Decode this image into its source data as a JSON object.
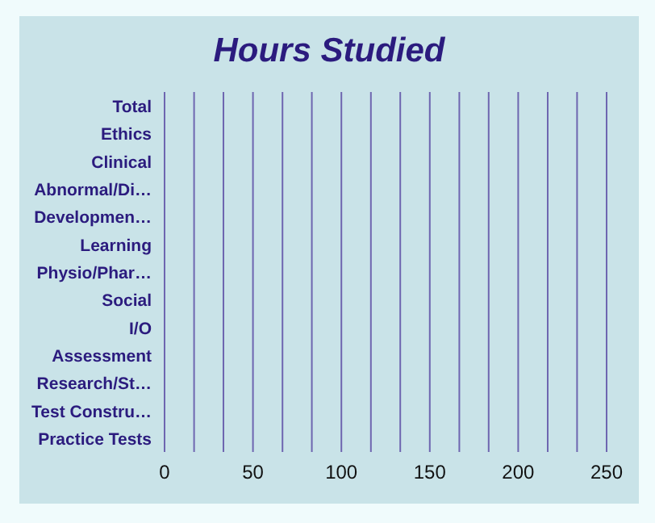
{
  "chart_data": {
    "type": "bar",
    "orientation": "horizontal",
    "title": "Hours Studied",
    "categories": [
      "Total",
      "Ethics",
      "Clinical",
      "Abnormal/Di…",
      "Developmen…",
      "Learning",
      "Physio/Phar…",
      "Social",
      "I/O",
      "Assessment",
      "Research/St…",
      "Test Constru…",
      "Practice Tests"
    ],
    "values": [
      0,
      0,
      0,
      0,
      0,
      0,
      0,
      0,
      0,
      0,
      0,
      0,
      0
    ],
    "xlim": [
      0,
      250
    ],
    "xticks": [
      0,
      {
        "value": 16.7,
        "label": null
      },
      {
        "value": 33.3,
        "label": null
      },
      50,
      {
        "value": 66.7,
        "label": null
      },
      {
        "value": 83.3,
        "label": null
      },
      100,
      {
        "value": 116.7,
        "label": null
      },
      {
        "value": 133.3,
        "label": null
      },
      150,
      {
        "value": 166.7,
        "label": null
      },
      {
        "value": 183.3,
        "label": null
      },
      200,
      {
        "value": 216.7,
        "label": null
      },
      {
        "value": 233.3,
        "label": null
      },
      250
    ],
    "grid": "x"
  }
}
